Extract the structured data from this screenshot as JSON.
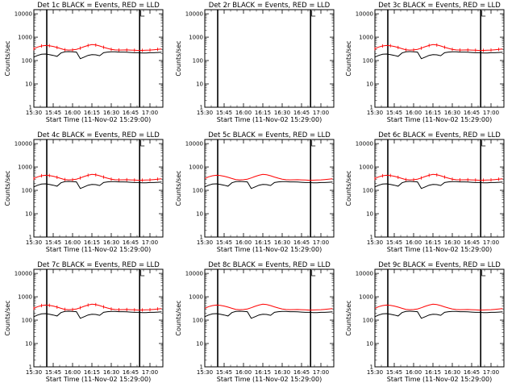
{
  "chart_data": {
    "type": "line",
    "layout": "3x3 grid of log-scale time-series panels",
    "ylabel": "Counts/sec",
    "yscale": "log",
    "ylim": [
      1,
      15000
    ],
    "y_ticks": [
      1,
      10,
      100,
      1000,
      10000
    ],
    "y_tick_labels": [
      "1",
      "10",
      "100",
      "1000",
      "10000"
    ],
    "xlim_minutes": [
      0,
      100
    ],
    "x_tick_minutes": [
      0,
      15,
      30,
      45,
      60,
      75,
      90
    ],
    "x_tick_labels": [
      "15:30",
      "15:45",
      "16:00",
      "16:15",
      "16:30",
      "16:45",
      "17:00"
    ],
    "legend": {
      "black": "Events",
      "red": "LLD"
    },
    "panels": [
      {
        "title": "Det 1c BLACK = Events, RED = LLD",
        "xlabel": "Start Time (11-Nov-02 15:29:00)",
        "has_data": true,
        "errorbars": true
      },
      {
        "title": "Det 2r BLACK = Events, RED = LLD",
        "xlabel": "Start Time (11-Nov-02 15:29:00)",
        "has_data": false,
        "errorbars": false
      },
      {
        "title": "Det 3c BLACK = Events, RED = LLD",
        "xlabel": "Start Time (11-Nov-02 15:29:00)",
        "has_data": true,
        "errorbars": true
      },
      {
        "title": "Det 4c BLACK = Events, RED = LLD",
        "xlabel": "Start Time (11-Nov-02 15:29:00)",
        "has_data": true,
        "errorbars": true
      },
      {
        "title": "Det 5c BLACK = Events, RED = LLD",
        "xlabel": "Start Time (11-Nov-02 15:29:00)",
        "has_data": true,
        "errorbars": false
      },
      {
        "title": "Det 6c BLACK = Events, RED = LLD",
        "xlabel": "Start Time (11-Nov-02 15:29:00)",
        "has_data": true,
        "errorbars": true
      },
      {
        "title": "Det 7c BLACK = Events, RED = LLD",
        "xlabel": "Start Time (11-Nov-02 15:29:00)",
        "has_data": true,
        "errorbars": true
      },
      {
        "title": "Det 8c BLACK = Events, RED = LLD",
        "xlabel": "Start Time (11-Nov-02 15:29:00)",
        "has_data": true,
        "errorbars": false
      },
      {
        "title": "Det 9c BLACK = Events, RED = LLD",
        "xlabel": "Start Time (11-Nov-02 15:29:00)",
        "has_data": true,
        "errorbars": false
      }
    ],
    "markers_minutes": [
      10,
      82
    ],
    "gaps_minutes": [
      [
        21,
        27
      ],
      [
        50,
        56
      ],
      [
        78,
        84
      ]
    ],
    "series": [
      {
        "name": "LLD",
        "color": "#ff0000",
        "x": [
          0,
          3,
          6,
          9,
          12,
          15,
          18,
          21,
          24,
          27,
          30,
          33,
          36,
          39,
          42,
          45,
          48,
          51,
          54,
          57,
          60,
          63,
          66,
          69,
          72,
          75,
          78,
          81,
          84,
          87,
          90,
          93,
          96,
          99
        ],
        "values": [
          320,
          380,
          420,
          440,
          430,
          400,
          360,
          320,
          290,
          280,
          285,
          300,
          340,
          390,
          440,
          480,
          460,
          420,
          370,
          330,
          300,
          285,
          280,
          282,
          285,
          280,
          275,
          270,
          272,
          275,
          280,
          290,
          300,
          310
        ]
      },
      {
        "name": "Events",
        "color": "#000000",
        "x": [
          0,
          3,
          6,
          9,
          12,
          15,
          18,
          21,
          24,
          27,
          30,
          33,
          36,
          39,
          42,
          45,
          48,
          51,
          54,
          57,
          60,
          63,
          66,
          69,
          72,
          75,
          78,
          81,
          84,
          87,
          90,
          93,
          96,
          99
        ],
        "values": [
          140,
          165,
          185,
          190,
          180,
          165,
          150,
          210,
          235,
          240,
          235,
          230,
          120,
          140,
          165,
          180,
          175,
          160,
          215,
          230,
          235,
          235,
          230,
          230,
          225,
          220,
          215,
          215,
          210,
          210,
          215,
          215,
          220,
          225
        ]
      }
    ]
  }
}
